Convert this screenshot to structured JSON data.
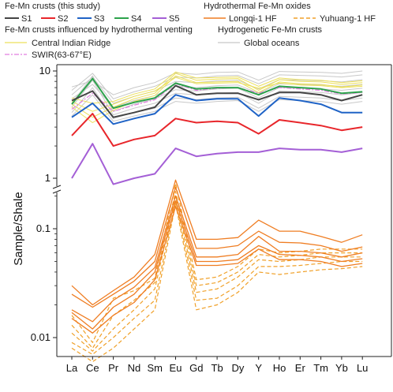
{
  "chart_data": {
    "type": "line",
    "title": "",
    "xlabel": "",
    "ylabel": "Sample/Shale",
    "y_scale": "log",
    "y_axis_break": [
      1,
      0.3
    ],
    "y_ticks": [
      "10",
      "1",
      "0.1",
      "0.01"
    ],
    "categories": [
      "La",
      "Ce",
      "Pr",
      "Nd",
      "Sm",
      "Eu",
      "Gd",
      "Tb",
      "Dy",
      "Y",
      "Ho",
      "Er",
      "Tm",
      "Yb",
      "Lu"
    ],
    "legend": {
      "group_fe_mn_study": "Fe-Mn crusts (this study)",
      "group_hydrothermal_oxides": "Hydrothermal Fe-Mn oxides",
      "group_influenced": "Fe-Mn crusts influenced by hydrothermal venting",
      "group_hydrogenetic": "Hydrogenetic Fe-Mn crusts",
      "entries": [
        {
          "key": "S1",
          "label": "S1",
          "color": "#444444",
          "style": "solid"
        },
        {
          "key": "S2",
          "label": "S2",
          "color": "#e8262b",
          "style": "solid"
        },
        {
          "key": "S3",
          "label": "S3",
          "color": "#1f63c6",
          "style": "solid"
        },
        {
          "key": "S4",
          "label": "S4",
          "color": "#2ca24b",
          "style": "solid"
        },
        {
          "key": "S5",
          "label": "S5",
          "color": "#a45fd6",
          "style": "solid"
        },
        {
          "key": "longqi",
          "label": "Longqi-1 HF",
          "color": "#ef7d22",
          "style": "solid"
        },
        {
          "key": "yuhuang",
          "label": "Yuhuang-1 HF",
          "color": "#f0a028",
          "style": "dashed"
        },
        {
          "key": "cir",
          "label": "Central Indian Ridge",
          "color": "#ece05a",
          "style": "solid"
        },
        {
          "key": "swir",
          "label": "SWIR(63-67°E)",
          "color": "#e27de0",
          "style": "dashdot"
        },
        {
          "key": "global",
          "label": "Global oceans",
          "color": "#c8c8c8",
          "style": "solid"
        }
      ]
    },
    "series": [
      {
        "name": "S1",
        "color": "#444444",
        "width": 2,
        "style": "solid",
        "values": [
          5.3,
          6.5,
          3.7,
          4.1,
          4.6,
          7.3,
          6.0,
          6.2,
          6.2,
          5.4,
          6.3,
          6.3,
          6.0,
          5.3,
          6.0
        ]
      },
      {
        "name": "S2",
        "color": "#e8262b",
        "width": 2,
        "style": "solid",
        "values": [
          2.5,
          4.0,
          2.0,
          2.3,
          2.5,
          3.6,
          3.3,
          3.4,
          3.3,
          2.6,
          3.5,
          3.3,
          3.1,
          2.8,
          3.0
        ]
      },
      {
        "name": "S3",
        "color": "#1f63c6",
        "width": 2,
        "style": "solid",
        "values": [
          3.7,
          5.0,
          3.2,
          3.6,
          4.0,
          6.0,
          5.3,
          5.5,
          5.5,
          3.8,
          5.6,
          5.3,
          4.9,
          4.1,
          4.1
        ]
      },
      {
        "name": "S4",
        "color": "#2ca24b",
        "width": 2,
        "style": "solid",
        "values": [
          4.9,
          8.5,
          4.5,
          5.1,
          5.6,
          7.7,
          6.8,
          7.0,
          7.0,
          6.0,
          7.2,
          7.0,
          6.8,
          6.2,
          6.4
        ]
      },
      {
        "name": "S5",
        "color": "#a45fd6",
        "width": 2,
        "style": "solid",
        "values": [
          1.0,
          2.1,
          0.88,
          1.0,
          1.1,
          1.9,
          1.6,
          1.7,
          1.75,
          1.75,
          1.9,
          1.85,
          1.85,
          1.75,
          1.9
        ]
      },
      {
        "name": "Central Indian Ridge",
        "color": "#ece05a",
        "width": 1,
        "style": "solid",
        "values": [
          4.6,
          3.3,
          4.3,
          5.2,
          5.9,
          9.0,
          7.8,
          7.9,
          8.0,
          6.3,
          7.9,
          7.6,
          7.5,
          7.1,
          7.4
        ]
      },
      {
        "name": "Central Indian Ridge",
        "color": "#ece05a",
        "width": 1,
        "style": "solid",
        "values": [
          4.9,
          3.7,
          4.6,
          5.5,
          6.2,
          9.5,
          8.2,
          8.4,
          8.5,
          6.6,
          8.3,
          8.0,
          7.9,
          7.5,
          7.8
        ]
      },
      {
        "name": "Central Indian Ridge",
        "color": "#ece05a",
        "width": 1,
        "style": "solid",
        "values": [
          5.2,
          4.2,
          4.9,
          5.8,
          6.5,
          8.7,
          7.6,
          7.7,
          7.8,
          6.9,
          7.7,
          7.4,
          7.3,
          7.0,
          7.2
        ]
      },
      {
        "name": "Central Indian Ridge",
        "color": "#ece05a",
        "width": 1,
        "style": "solid",
        "values": [
          5.6,
          5.0,
          5.2,
          6.1,
          6.8,
          9.8,
          8.6,
          8.7,
          8.8,
          7.2,
          8.6,
          8.3,
          8.2,
          7.8,
          8.1
        ]
      },
      {
        "name": "SWIR(63-67°E)",
        "color": "#e27de0",
        "width": 1.2,
        "style": "dashdot",
        "values": [
          4.4,
          6.2,
          4.2,
          4.8,
          5.4,
          7.6,
          6.6,
          6.9,
          7.0,
          6.2,
          7.0,
          6.8,
          6.6,
          6.1,
          6.3
        ]
      },
      {
        "name": "Global oceans",
        "color": "#c8c8c8",
        "width": 1,
        "style": "solid",
        "values": [
          4.1,
          7.0,
          3.6,
          4.1,
          4.5,
          5.6,
          5.4,
          5.6,
          5.7,
          4.5,
          5.8,
          5.7,
          5.6,
          5.3,
          5.6
        ]
      },
      {
        "name": "Global oceans",
        "color": "#c8c8c8",
        "width": 1,
        "style": "solid",
        "values": [
          4.6,
          8.2,
          3.9,
          4.5,
          5.0,
          6.2,
          6.0,
          6.2,
          6.3,
          5.0,
          6.5,
          6.4,
          6.3,
          6.0,
          6.3
        ]
      },
      {
        "name": "Global oceans",
        "color": "#c8c8c8",
        "width": 1,
        "style": "solid",
        "values": [
          5.0,
          9.0,
          4.2,
          4.9,
          5.5,
          6.7,
          6.5,
          6.8,
          6.9,
          5.6,
          7.0,
          6.9,
          6.8,
          6.6,
          6.9
        ]
      },
      {
        "name": "Global oceans",
        "color": "#c8c8c8",
        "width": 1,
        "style": "solid",
        "values": [
          5.5,
          7.5,
          4.6,
          5.3,
          5.9,
          7.2,
          7.0,
          7.3,
          7.4,
          6.2,
          7.6,
          7.5,
          7.4,
          7.2,
          7.5
        ]
      },
      {
        "name": "Global oceans",
        "color": "#c8c8c8",
        "width": 1,
        "style": "solid",
        "values": [
          6.0,
          8.8,
          5.0,
          5.8,
          6.5,
          8.0,
          7.8,
          8.1,
          8.2,
          6.8,
          8.3,
          8.2,
          8.1,
          7.9,
          8.3
        ]
      },
      {
        "name": "Global oceans",
        "color": "#c8c8c8",
        "width": 1,
        "style": "solid",
        "values": [
          6.6,
          9.5,
          5.5,
          6.4,
          7.2,
          8.8,
          8.6,
          9.0,
          9.1,
          7.6,
          9.2,
          9.1,
          9.0,
          8.8,
          9.2
        ]
      },
      {
        "name": "Global oceans",
        "color": "#c8c8c8",
        "width": 1,
        "style": "solid",
        "values": [
          7.1,
          8.1,
          6.0,
          7.0,
          7.8,
          9.6,
          9.3,
          9.7,
          9.8,
          8.2,
          9.9,
          9.8,
          9.7,
          9.5,
          10.0
        ]
      },
      {
        "name": "Global oceans",
        "color": "#c8c8c8",
        "width": 1,
        "style": "solid",
        "values": [
          3.8,
          6.0,
          3.4,
          3.8,
          4.2,
          5.2,
          5.0,
          5.2,
          5.3,
          4.2,
          5.4,
          5.3,
          5.2,
          4.9,
          5.2
        ]
      },
      {
        "name": "Longqi-1 HF",
        "color": "#ef7d22",
        "width": 1.3,
        "style": "solid",
        "values": [
          0.03,
          0.02,
          0.027,
          0.036,
          0.058,
          0.28,
          0.08,
          0.08,
          0.083,
          0.12,
          0.095,
          0.095,
          0.085,
          0.075,
          0.088
        ]
      },
      {
        "name": "Longqi-1 HF",
        "color": "#ef7d22",
        "width": 1.3,
        "style": "solid",
        "values": [
          0.025,
          0.019,
          0.025,
          0.033,
          0.05,
          0.24,
          0.066,
          0.066,
          0.07,
          0.095,
          0.075,
          0.074,
          0.07,
          0.062,
          0.068
        ]
      },
      {
        "name": "Longqi-1 HF",
        "color": "#ef7d22",
        "width": 1.3,
        "style": "solid",
        "values": [
          0.018,
          0.014,
          0.022,
          0.029,
          0.044,
          0.2,
          0.055,
          0.055,
          0.058,
          0.085,
          0.062,
          0.062,
          0.06,
          0.055,
          0.06
        ]
      },
      {
        "name": "Longqi-1 HF",
        "color": "#ef7d22",
        "width": 1.3,
        "style": "solid",
        "values": [
          0.017,
          0.012,
          0.019,
          0.025,
          0.04,
          0.18,
          0.05,
          0.05,
          0.052,
          0.07,
          0.058,
          0.057,
          0.055,
          0.05,
          0.053
        ]
      },
      {
        "name": "Longqi-1 HF",
        "color": "#ef7d22",
        "width": 1.3,
        "style": "solid",
        "values": [
          0.015,
          0.011,
          0.016,
          0.021,
          0.034,
          0.16,
          0.046,
          0.046,
          0.048,
          0.065,
          0.052,
          0.052,
          0.05,
          0.045,
          0.048
        ]
      },
      {
        "name": "Yuhuang-1 HF",
        "color": "#f0a028",
        "width": 1.2,
        "style": "dashed",
        "values": [
          0.016,
          0.009,
          0.023,
          0.027,
          0.035,
          0.26,
          0.034,
          0.036,
          0.045,
          0.065,
          0.06,
          0.062,
          0.065,
          0.065,
          0.065
        ]
      },
      {
        "name": "Yuhuang-1 HF",
        "color": "#f0a028",
        "width": 1.2,
        "style": "dashed",
        "values": [
          0.013,
          0.008,
          0.016,
          0.022,
          0.032,
          0.22,
          0.03,
          0.032,
          0.04,
          0.058,
          0.055,
          0.057,
          0.06,
          0.06,
          0.06
        ]
      },
      {
        "name": "Yuhuang-1 HF",
        "color": "#f0a028",
        "width": 1.2,
        "style": "dashed",
        "values": [
          0.011,
          0.0075,
          0.012,
          0.018,
          0.028,
          0.2,
          0.026,
          0.028,
          0.036,
          0.052,
          0.05,
          0.052,
          0.055,
          0.055,
          0.055
        ]
      },
      {
        "name": "Yuhuang-1 HF",
        "color": "#f0a028",
        "width": 1.2,
        "style": "dashed",
        "values": [
          0.009,
          0.007,
          0.01,
          0.015,
          0.022,
          0.18,
          0.022,
          0.023,
          0.03,
          0.045,
          0.045,
          0.046,
          0.048,
          0.05,
          0.05
        ]
      },
      {
        "name": "Yuhuang-1 HF",
        "color": "#f0a028",
        "width": 1.2,
        "style": "dashed",
        "values": [
          0.008,
          0.006,
          0.008,
          0.012,
          0.018,
          0.17,
          0.018,
          0.02,
          0.026,
          0.04,
          0.038,
          0.04,
          0.042,
          0.043,
          0.045
        ]
      }
    ]
  }
}
